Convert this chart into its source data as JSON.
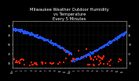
{
  "title": "Milwaukee Weather Outdoor Humidity\nvs Temperature\nEvery 5 Minutes",
  "title_fontsize": 3.8,
  "background_color": "#000000",
  "plot_bg_color": "#000000",
  "grid_color": "#444444",
  "blue_color": "#2255ff",
  "red_color": "#ff2200",
  "right_tick_labels": [
    "90",
    "70",
    "50",
    "30",
    "10"
  ],
  "right_tick_positions": [
    90,
    70,
    50,
    30,
    10
  ],
  "left_tick_labels": [
    "90",
    "70",
    "50",
    "30",
    "10"
  ],
  "left_tick_positions": [
    90,
    70,
    50,
    30,
    10
  ],
  "ylim": [
    0,
    100
  ],
  "xlim": [
    0,
    287
  ],
  "num_points": 288,
  "x_tick_step": 12,
  "x_labels": [
    "12a",
    "1",
    "2",
    "3",
    "4",
    "5",
    "6",
    "7",
    "8",
    "9",
    "10",
    "11",
    "12p",
    "1",
    "2",
    "3",
    "4",
    "5",
    "6",
    "7",
    "8",
    "9",
    "10",
    "11",
    "12a"
  ]
}
